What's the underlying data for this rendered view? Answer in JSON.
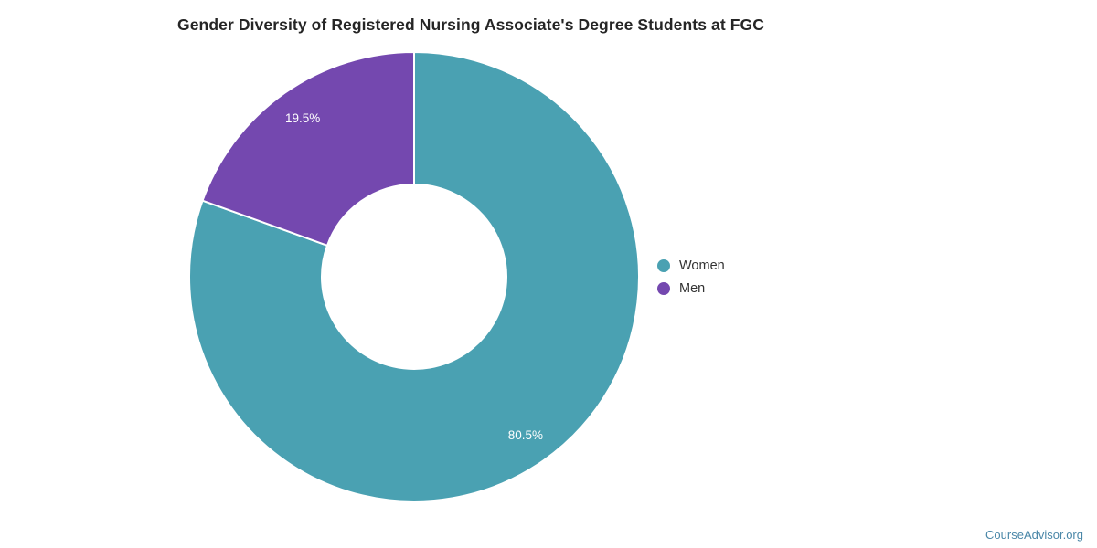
{
  "title": "Gender Diversity of Registered Nursing Associate's Degree Students at FGC",
  "chart_data": {
    "type": "pie",
    "subtype": "donut",
    "title": "Gender Diversity of Registered Nursing Associate's Degree Students at FGC",
    "categories": [
      "Women",
      "Men"
    ],
    "values": [
      80.5,
      19.5
    ],
    "slice_labels": [
      "80.5%",
      "19.5%"
    ],
    "colors": [
      "#4AA1B2",
      "#7448AF"
    ],
    "start_angle_deg": 0,
    "direction": "clockwise",
    "inner_radius_ratio": 0.41,
    "legend_position": "right",
    "slice_border_color": "#ffffff"
  },
  "legend": {
    "items": [
      {
        "label": "Women",
        "color": "#4AA1B2"
      },
      {
        "label": "Men",
        "color": "#7448AF"
      }
    ]
  },
  "watermark": {
    "text": "CourseAdvisor.org",
    "color": "#4A87A8"
  }
}
